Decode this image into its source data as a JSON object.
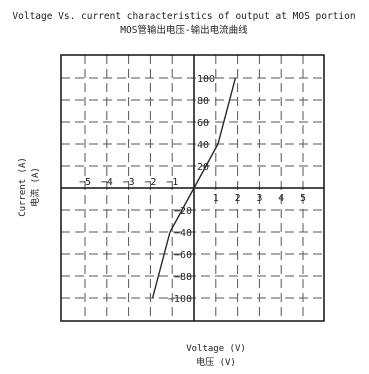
{
  "chart_data": {
    "type": "line",
    "title": "Voltage Vs. current characteristics of output at MOS portion",
    "subtitle": "MOS管输出电压-输出电流曲线",
    "xlabel": "Voltage (V)",
    "xlabel_cn": "电压 (V)",
    "ylabel": "Current (A)",
    "ylabel_cn": "电流 (A)",
    "xlim": [
      -6,
      6
    ],
    "ylim": [
      -120,
      120
    ],
    "grid": true,
    "x_ticks": [
      -5,
      -4,
      -3,
      -2,
      -1,
      1,
      2,
      3,
      4,
      5
    ],
    "x_tick_labels": [
      "−5",
      "−4",
      "−3",
      "−2",
      "−1",
      "1",
      "2",
      "3",
      "4",
      "5"
    ],
    "y_ticks": [
      100,
      80,
      60,
      40,
      20,
      -20,
      -40,
      -60,
      -80,
      -100
    ],
    "y_tick_labels": [
      "100",
      "80",
      "60",
      "40",
      "20",
      "−20",
      "−40",
      "−60",
      "−80",
      "−100"
    ],
    "line_color": "#2a2a2a",
    "series": [
      {
        "x": [
          -1.9,
          -1.1,
          0,
          1.1,
          1.9
        ],
        "y": [
          -100,
          -40,
          0,
          40,
          100
        ]
      }
    ]
  }
}
